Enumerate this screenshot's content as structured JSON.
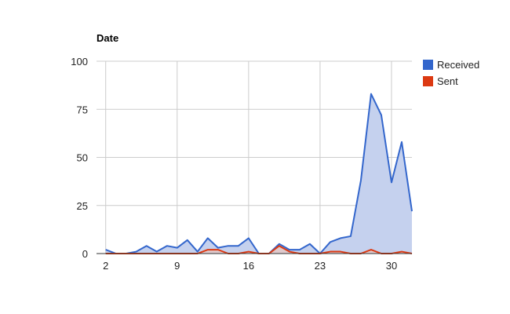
{
  "chart_data": {
    "type": "area",
    "title": "Date",
    "xlabel": "",
    "ylabel": "",
    "x": [
      2,
      3,
      4,
      5,
      6,
      7,
      8,
      9,
      10,
      11,
      12,
      13,
      14,
      15,
      16,
      17,
      18,
      19,
      20,
      21,
      22,
      23,
      24,
      25,
      26,
      27,
      28,
      29,
      30,
      31,
      32
    ],
    "xlim": [
      1.1,
      32
    ],
    "ylim": [
      0,
      100
    ],
    "x_ticks": [
      2,
      9,
      16,
      23,
      30
    ],
    "y_ticks": [
      0,
      25,
      50,
      75,
      100
    ],
    "grid": true,
    "legend_position": "right",
    "series": [
      {
        "name": "Received",
        "color": "#3366cc",
        "fill_color": "#c5d1ee",
        "values": [
          2,
          0,
          0,
          1,
          4,
          1,
          4,
          3,
          7,
          1,
          8,
          3,
          4,
          4,
          8,
          0,
          0,
          5,
          2,
          2,
          5,
          0,
          6,
          8,
          9,
          38,
          83,
          72,
          37,
          58,
          22
        ]
      },
      {
        "name": "Sent",
        "color": "#dc3912",
        "fill_color": "#f0c4b8",
        "values": [
          0,
          0,
          0,
          0,
          0,
          0,
          0,
          0,
          0,
          0,
          2,
          2,
          0,
          0,
          1,
          0,
          0,
          4,
          1,
          0,
          0,
          0,
          1,
          1,
          0,
          0,
          2,
          0,
          0,
          1,
          0
        ]
      }
    ]
  }
}
